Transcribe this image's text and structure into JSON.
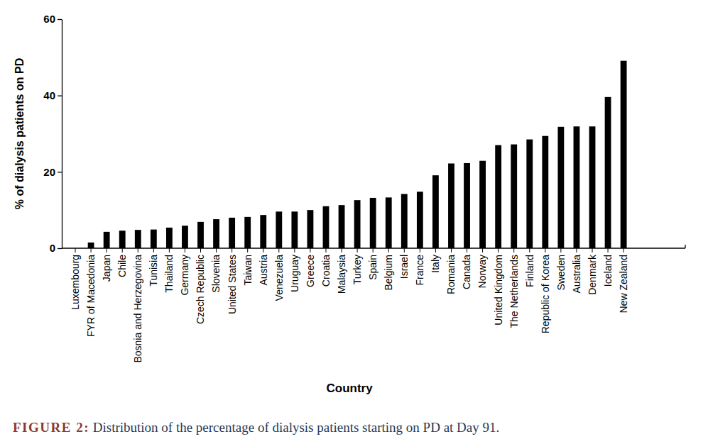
{
  "chart_data": {
    "type": "bar",
    "title": "FIGURE 2: Distribution of the percentage of dialysis patients starting on PD at Day 91.",
    "x_label": "Country",
    "y_label": "% of dialysis patients on PD",
    "categories": [
      "Luxembourg",
      "FYR of Macedonia",
      "Japan",
      "Chile",
      "Bosnia and Herzegovina",
      "Tunisia",
      "Thailand",
      "Germany",
      "Czech Republic",
      "Slovenia",
      "United States",
      "Taiwan",
      "Austria",
      "Venezuela",
      "Uruguay",
      "Greece",
      "Croatia",
      "Malaysia",
      "Turkey",
      "Spain",
      "Belgium",
      "Israel",
      "France",
      "Italy",
      "Romania",
      "Canada",
      "Norway",
      "United Kingdom",
      "The Netherlands",
      "Finland",
      "Republic of Korea",
      "Sweden",
      "Australia",
      "Denmark",
      "Iceland",
      "New Zealand"
    ],
    "values": [
      0,
      1.5,
      4.3,
      4.6,
      4.8,
      4.9,
      5.4,
      5.9,
      6.9,
      7.6,
      8.0,
      8.2,
      8.7,
      9.6,
      9.6,
      10.0,
      11.0,
      11.3,
      12.6,
      13.2,
      13.3,
      14.2,
      14.8,
      19.1,
      22.2,
      22.3,
      22.9,
      27.0,
      27.2,
      28.5,
      29.4,
      31.8,
      31.9,
      31.9,
      39.6,
      49.1
    ],
    "color": "#000000",
    "ylim": [
      0,
      60
    ],
    "yticks": [
      0,
      20,
      40,
      60
    ],
    "grid": false
  }
}
